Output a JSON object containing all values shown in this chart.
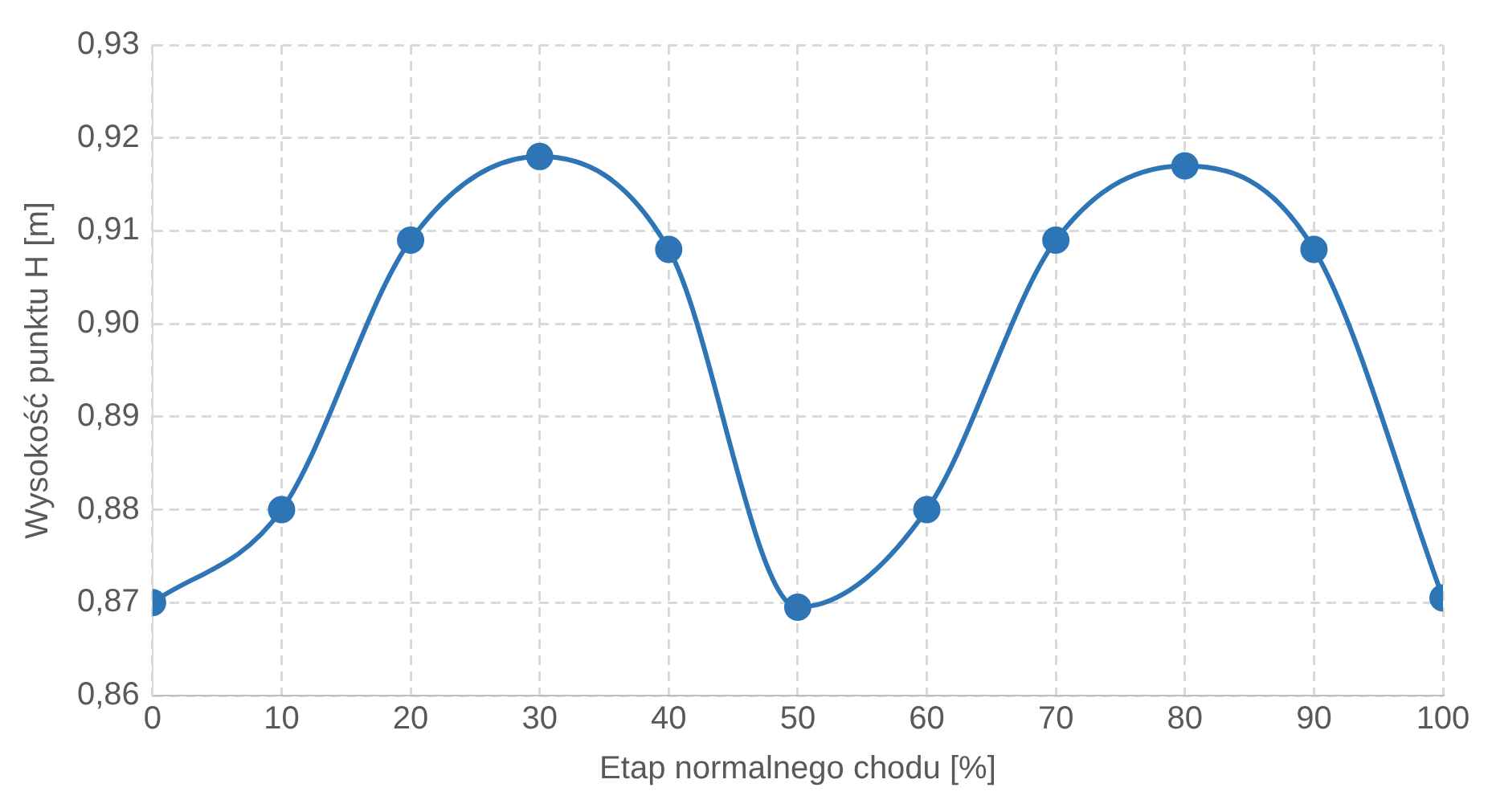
{
  "chart_data": {
    "type": "line",
    "xlabel": "Etap normalnego chodu [%]",
    "ylabel": "Wysokość punktu H [m]",
    "x": [
      0,
      10,
      20,
      30,
      40,
      50,
      60,
      70,
      80,
      90,
      100
    ],
    "series": [
      {
        "color": "#2e75b6",
        "values": [
          0.87,
          0.88,
          0.909,
          0.918,
          0.908,
          0.8695,
          0.88,
          0.909,
          0.917,
          0.908,
          0.8705
        ]
      }
    ],
    "xlim": [
      0,
      100
    ],
    "xticks": [
      0,
      10,
      20,
      30,
      40,
      50,
      60,
      70,
      80,
      90,
      100
    ],
    "ylim": [
      0.86,
      0.93
    ],
    "yticks": [
      {
        "value": 0.86,
        "label": "0,86"
      },
      {
        "value": 0.87,
        "label": "0,87"
      },
      {
        "value": 0.88,
        "label": "0,88"
      },
      {
        "value": 0.89,
        "label": "0,89"
      },
      {
        "value": 0.9,
        "label": "0,90"
      },
      {
        "value": 0.91,
        "label": "0,91"
      },
      {
        "value": 0.92,
        "label": "0,92"
      },
      {
        "value": 0.93,
        "label": "0,93"
      }
    ],
    "grid": true,
    "marker": "circle",
    "line_style": "solid",
    "legend": false
  }
}
